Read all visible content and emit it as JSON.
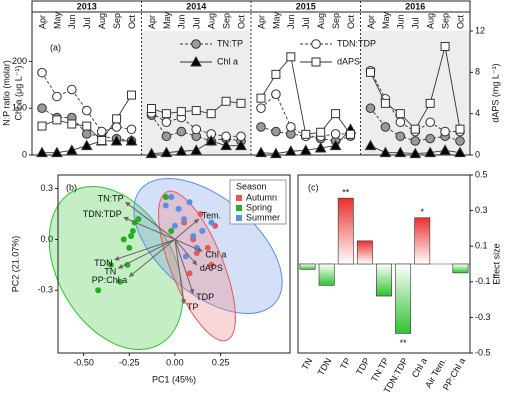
{
  "chart_data": [
    {
      "type": "line",
      "label": "(a)",
      "groups": [
        "2013",
        "2014",
        "2015",
        "2016"
      ],
      "shaded": [
        false,
        true,
        false,
        true
      ],
      "categories": [
        "Apr",
        "May",
        "Jun",
        "Jul",
        "Aug",
        "Sep",
        "Oct",
        "Apr",
        "May",
        "Jun",
        "Jul",
        "Aug",
        "Sep",
        "Oct",
        "Apr",
        "May",
        "Jun",
        "Jul",
        "Aug",
        "Sep",
        "Oct",
        "Apr",
        "May",
        "Jun",
        "Jul",
        "Aug",
        "Sep",
        "Oct"
      ],
      "ylabel": [
        "N:P ratio (molar)",
        "Chl a (μg L⁻¹)"
      ],
      "y2label": "dAPS (mg L⁻¹)",
      "ylim": [
        0,
        265
      ],
      "yticks": [
        0,
        100,
        200
      ],
      "y2lim": [
        0,
        12
      ],
      "y2ticks": [
        0,
        4,
        8,
        12
      ],
      "series": [
        {
          "name": "TN:TP",
          "marker": "circle",
          "line_style": "dashed",
          "color": "#9a9a9a",
          "values": [
            100,
            80,
            80,
            45,
            40,
            35,
            30,
            85,
            40,
            50,
            40,
            30,
            35,
            30,
            60,
            50,
            45,
            40,
            35,
            30,
            40,
            100,
            60,
            40,
            30,
            35,
            40,
            30
          ]
        },
        {
          "name": "TDN:TDP",
          "marker": "circle",
          "line_style": "dashed",
          "color": "#ffffff",
          "values": [
            176,
            125,
            140,
            95,
            50,
            60,
            55,
            90,
            70,
            80,
            55,
            45,
            40,
            40,
            100,
            130,
            60,
            40,
            40,
            45,
            45,
            180,
            120,
            70,
            50,
            70,
            50,
            50
          ]
        },
        {
          "name": "Chl a",
          "marker": "triangle",
          "line_style": "solid",
          "color": "#000000",
          "values": [
            5,
            5,
            10,
            20,
            30,
            30,
            30,
            3,
            5,
            8,
            10,
            30,
            20,
            20,
            5,
            3,
            8,
            10,
            15,
            20,
            55,
            20,
            5,
            5,
            3,
            5,
            10,
            5
          ]
        },
        {
          "name": "dAPS",
          "marker": "square",
          "line_style": "solid",
          "color": "#ffffff",
          "axis": "y2",
          "values": [
            2.8,
            3.4,
            3.0,
            2.8,
            1.4,
            3.5,
            5.8,
            4.5,
            4.0,
            4.2,
            4.3,
            4.0,
            5.2,
            5.0,
            5.5,
            7.8,
            9.5,
            2.0,
            2.2,
            4.0,
            2.0,
            8.0,
            5.0,
            4.0,
            2.5,
            5.0,
            10.5,
            2.5
          ]
        }
      ]
    },
    {
      "type": "scatter",
      "label": "(b)",
      "xlabel": "PC1 (45%)",
      "ylabel": "PC2 (21.07%)",
      "xlim": [
        -0.64,
        0.63
      ],
      "ylim": [
        -0.67,
        0.38
      ],
      "xticks": [
        {
          "value": -0.5,
          "label": "-0.50"
        },
        {
          "value": -0.25,
          "label": "-0.25"
        },
        {
          "value": 0,
          "label": "0.00"
        },
        {
          "value": 0.25,
          "label": "0.25"
        }
      ],
      "yticks": [
        -0.3,
        {
          "value": 0,
          "label": "0.0"
        },
        0.3
      ],
      "legend_title": "Season",
      "legend": "upper right",
      "series": [
        {
          "name": "Autumn",
          "color": "#e8585a",
          "x": [
            0.05,
            0.1,
            0.12,
            0.15,
            0.18,
            0.2,
            0.22,
            0.08,
            0.14
          ],
          "y": [
            0.1,
            0.0,
            -0.08,
            0.05,
            -0.05,
            -0.15,
            0.08,
            -0.2,
            0.15
          ]
        },
        {
          "name": "Spring",
          "color": "#22b022",
          "x": [
            -0.42,
            -0.3,
            -0.25,
            -0.24,
            -0.23,
            -0.22,
            -0.2,
            -0.05,
            -0.02,
            -0.26,
            -0.35,
            -0.28
          ],
          "y": [
            -0.3,
            -0.25,
            -0.05,
            0.02,
            0.05,
            0.1,
            0.12,
            0.25,
            0.05,
            -0.15,
            -0.15,
            0.0
          ]
        },
        {
          "name": "Summer",
          "color": "#5b8ee6",
          "x": [
            -0.05,
            0.0,
            0.02,
            0.05,
            0.08,
            0.1,
            0.12,
            0.15,
            0.2,
            0.06,
            -0.02
          ],
          "y": [
            0.2,
            0.08,
            0.18,
            0.12,
            0.22,
            0.02,
            -0.05,
            0.05,
            0.1,
            -0.1,
            0.25
          ]
        }
      ],
      "vectors": [
        {
          "name": "TN:TP",
          "x": -0.27,
          "y": 0.22
        },
        {
          "name": "TDN:TDP",
          "x": -0.28,
          "y": 0.13
        },
        {
          "name": "TDN",
          "x": -0.33,
          "y": -0.12
        },
        {
          "name": "TN",
          "x": -0.31,
          "y": -0.17
        },
        {
          "name": "PP:Chl a",
          "x": -0.25,
          "y": -0.22
        },
        {
          "name": "TP",
          "x": 0.05,
          "y": -0.38
        },
        {
          "name": "TDP",
          "x": 0.1,
          "y": -0.32
        },
        {
          "name": "Chl a",
          "x": 0.15,
          "y": -0.07
        },
        {
          "name": "dAPS",
          "x": 0.12,
          "y": -0.15
        },
        {
          "name": "Tem.",
          "x": 0.13,
          "y": 0.12
        }
      ]
    },
    {
      "type": "bar",
      "label": "(c)",
      "ylabel": "Effect size",
      "categories": [
        "TN",
        "TDN",
        "TP",
        "TDP",
        "TN:TP",
        "TDN:TDP",
        "Chl a",
        "Air Tem.",
        "PP:Chl a"
      ],
      "values": [
        -0.03,
        -0.12,
        0.37,
        0.13,
        -0.18,
        -0.39,
        0.26,
        0,
        -0.05
      ],
      "significance": [
        null,
        null,
        "**",
        null,
        null,
        "**",
        "*",
        null,
        null
      ],
      "positive_color": "#e8302c",
      "negative_color": "#2fc22f",
      "ylim": [
        -0.5,
        0.5
      ],
      "yticks": [
        -0.5,
        -0.3,
        -0.1,
        0.1,
        0.3,
        0.5
      ]
    }
  ]
}
